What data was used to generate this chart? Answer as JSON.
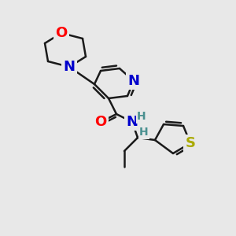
{
  "background_color": "#e8e8e8",
  "bond_color": "#1a1a1a",
  "atom_colors": {
    "O": "#ff0000",
    "N": "#0000cc",
    "S": "#aaaa00",
    "H": "#4a9090",
    "C": "#1a1a1a"
  },
  "font_size_atoms": 13,
  "font_size_H": 10,
  "lw": 1.8
}
